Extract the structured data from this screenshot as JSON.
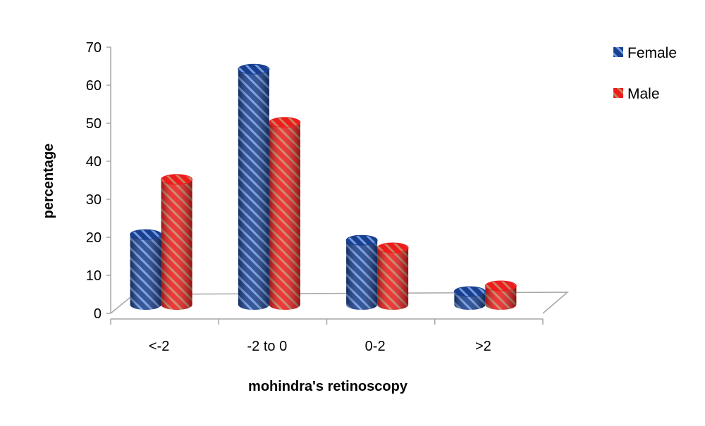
{
  "chart_data": {
    "type": "bar",
    "style": "3d-cylinder",
    "title": "",
    "xlabel": "mohindra's retinoscopy",
    "ylabel": "percentage",
    "ylim": [
      0,
      70
    ],
    "yticks": [
      "0",
      "10",
      "20",
      "30",
      "40",
      "50",
      "60",
      "70"
    ],
    "categories": [
      "<-2",
      "-2 to 0",
      "0-2",
      ">2"
    ],
    "series": [
      {
        "name": "Female",
        "values": [
          18.5,
          62,
          17,
          3.5
        ],
        "color": "#1a3f8f",
        "stripe": "#6f9be0"
      },
      {
        "name": "Male",
        "values": [
          33,
          48,
          15,
          5
        ],
        "color": "#ee1c1c",
        "stripe": "#c98060"
      }
    ],
    "legend": "right",
    "grid": false
  }
}
